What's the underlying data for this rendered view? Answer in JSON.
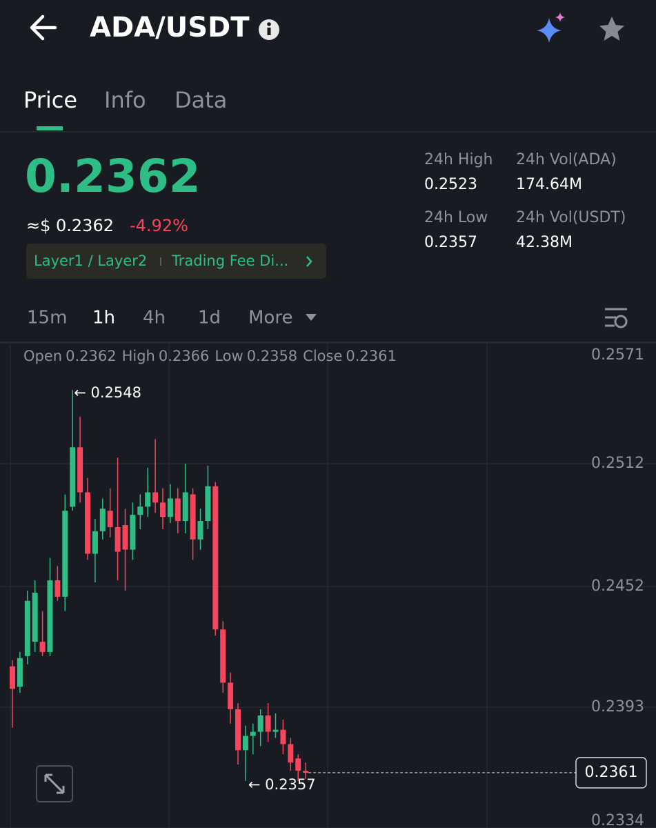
{
  "header": {
    "title": "ADA/USDT"
  },
  "tabs": [
    "Price",
    "Info",
    "Data"
  ],
  "price": {
    "last": "0.2362",
    "usd": "≈$ 0.2362",
    "change": "-4.92%",
    "tags": [
      "Layer1 / Layer2",
      "Trading Fee Di..."
    ]
  },
  "stats": [
    {
      "label": "24h High",
      "value": "0.2523"
    },
    {
      "label": "24h Vol(ADA)",
      "value": "174.64M"
    },
    {
      "label": "24h Low",
      "value": "0.2357"
    },
    {
      "label": "24h Vol(USDT)",
      "value": "42.38M"
    }
  ],
  "timeframes": [
    "15m",
    "1h",
    "4h",
    "1d",
    "More"
  ],
  "chart_data": {
    "type": "candlestick",
    "ohlc_legend": [
      {
        "label": "Open",
        "value": "0.2362"
      },
      {
        "label": "High",
        "value": "0.2366"
      },
      {
        "label": "Low",
        "value": "0.2358"
      },
      {
        "label": "Close",
        "value": "0.2361"
      }
    ],
    "ylim": [
      0.2334,
      0.2571
    ],
    "yticks": [
      0.2571,
      0.2512,
      0.2452,
      0.2393,
      0.2334
    ],
    "grid": true,
    "up_color": "#2ebd85",
    "down_color": "#f6465d",
    "high_annotation": "← 0.2548",
    "low_annotation": "← 0.2357",
    "last_price_label": "0.2361",
    "candles": {
      "open": [
        0.2413,
        0.2403,
        0.2418,
        0.2425,
        0.2425,
        0.242,
        0.2455,
        0.2447,
        0.2491,
        0.252,
        0.2498,
        0.2468,
        0.2479,
        0.2489,
        0.2481,
        0.2482,
        0.247,
        0.2487,
        0.2491,
        0.2498,
        0.2493,
        0.2486,
        0.2495,
        0.2484,
        0.2497,
        0.2475,
        0.2484,
        0.2501,
        0.2431,
        0.2405,
        0.2392,
        0.2372,
        0.2379,
        0.2381,
        0.2389,
        0.2381,
        0.2382,
        0.2375,
        0.2368,
        0.2362
      ],
      "high": [
        0.2416,
        0.242,
        0.245,
        0.2455,
        0.244,
        0.2466,
        0.2462,
        0.2497,
        0.2548,
        0.2535,
        0.2505,
        0.2485,
        0.2495,
        0.25,
        0.2515,
        0.249,
        0.2493,
        0.2497,
        0.251,
        0.2524,
        0.25,
        0.2502,
        0.25,
        0.2512,
        0.25,
        0.249,
        0.2511,
        0.2503,
        0.2435,
        0.241,
        0.2395,
        0.2384,
        0.2385,
        0.2392,
        0.2395,
        0.239,
        0.2387,
        0.2378,
        0.237,
        0.2366
      ],
      "low": [
        0.2383,
        0.24,
        0.2414,
        0.242,
        0.2418,
        0.2418,
        0.2445,
        0.244,
        0.2489,
        0.2493,
        0.2465,
        0.2454,
        0.2475,
        0.2476,
        0.2455,
        0.245,
        0.2465,
        0.248,
        0.2486,
        0.2488,
        0.248,
        0.2483,
        0.2478,
        0.2478,
        0.2465,
        0.247,
        0.248,
        0.2428,
        0.24,
        0.2385,
        0.2365,
        0.2357,
        0.237,
        0.2374,
        0.2376,
        0.2378,
        0.237,
        0.2362,
        0.2357,
        0.2358
      ],
      "close": [
        0.2402,
        0.2417,
        0.2445,
        0.2449,
        0.242,
        0.2455,
        0.2447,
        0.2489,
        0.252,
        0.2498,
        0.2468,
        0.2479,
        0.249,
        0.2481,
        0.2469,
        0.247,
        0.2487,
        0.2491,
        0.2498,
        0.2493,
        0.2486,
        0.2495,
        0.2484,
        0.2498,
        0.2475,
        0.2484,
        0.2501,
        0.2431,
        0.2405,
        0.2392,
        0.2372,
        0.2379,
        0.2381,
        0.2389,
        0.2381,
        0.2382,
        0.2375,
        0.2366,
        0.2362,
        0.2361
      ]
    }
  }
}
